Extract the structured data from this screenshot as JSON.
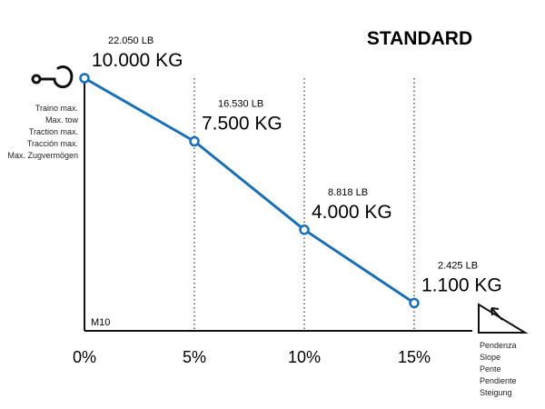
{
  "chart_data": {
    "type": "line",
    "title": "STANDARD",
    "x": [
      0,
      5,
      10,
      15
    ],
    "categories": [
      "0%",
      "5%",
      "10%",
      "15%"
    ],
    "series": [
      {
        "name": "Max. tow (kg)",
        "values": [
          10000,
          7500,
          4000,
          1100
        ]
      }
    ],
    "series_lb": [
      22050,
      16530,
      8818,
      2425
    ],
    "point_labels_kg": [
      "10.000",
      "7.500",
      "4.000",
      "1.100"
    ],
    "point_labels_lb": [
      "22.050",
      "16.530",
      "8.818",
      "2.425"
    ],
    "unit_kg": "KG",
    "unit_lb": "LB",
    "model": "M10",
    "ylabel_lines": [
      "Traino max.",
      "Max. tow",
      "Traction max.",
      "Tracción max.",
      "Max. Zugvermögen"
    ],
    "xlabel_lines": [
      "Pendenza",
      "Slope",
      "Pente",
      "Pendiente",
      "Steigung"
    ],
    "xlim": [
      0,
      15
    ],
    "ylim": [
      0,
      10000
    ],
    "grid": "vertical dotted at each category",
    "colors": {
      "line": "#1a6fb5",
      "axis": "#111111",
      "grid": "#333333",
      "text": "#1a1a1a"
    },
    "icons": {
      "ylabel_icon": "tow-hook-icon",
      "xlabel_icon": "slope-triangle-icon"
    }
  }
}
